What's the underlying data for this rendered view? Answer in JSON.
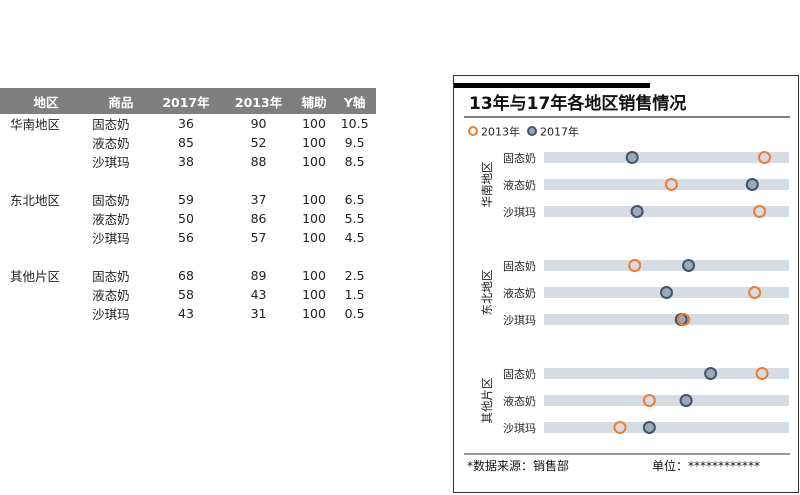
{
  "table": {
    "headers": [
      "地区",
      "商品",
      "2017年",
      "2013年",
      "辅助",
      "Y轴"
    ],
    "groups": [
      {
        "region": "华南地区",
        "rows": [
          {
            "product": "固态奶",
            "y2017": "36",
            "y2013": "90",
            "aux": "100",
            "y": "10.5"
          },
          {
            "product": "液态奶",
            "y2017": "85",
            "y2013": "52",
            "aux": "100",
            "y": "9.5"
          },
          {
            "product": "沙琪玛",
            "y2017": "38",
            "y2013": "88",
            "aux": "100",
            "y": "8.5"
          }
        ]
      },
      {
        "region": "东北地区",
        "rows": [
          {
            "product": "固态奶",
            "y2017": "59",
            "y2013": "37",
            "aux": "100",
            "y": "6.5"
          },
          {
            "product": "液态奶",
            "y2017": "50",
            "y2013": "86",
            "aux": "100",
            "y": "5.5"
          },
          {
            "product": "沙琪玛",
            "y2017": "56",
            "y2013": "57",
            "aux": "100",
            "y": "4.5"
          }
        ]
      },
      {
        "region": "其他片区",
        "rows": [
          {
            "product": "固态奶",
            "y2017": "68",
            "y2013": "89",
            "aux": "100",
            "y": "2.5"
          },
          {
            "product": "液态奶",
            "y2017": "58",
            "y2013": "43",
            "aux": "100",
            "y": "1.5"
          },
          {
            "product": "沙琪玛",
            "y2017": "43",
            "y2013": "31",
            "aux": "100",
            "y": "0.5"
          }
        ]
      }
    ]
  },
  "chart_data": {
    "type": "scatter",
    "title": "13年与17年各地区销售情况",
    "legend": [
      "2013年",
      "2017年"
    ],
    "legend_position": "top-left",
    "groups": [
      "华南地区",
      "东北地区",
      "其他片区"
    ],
    "categories": [
      "固态奶",
      "液态奶",
      "沙琪玛",
      "固态奶",
      "液态奶",
      "沙琪玛",
      "固态奶",
      "液态奶",
      "沙琪玛"
    ],
    "y": [
      10.5,
      9.5,
      8.5,
      6.5,
      5.5,
      4.5,
      2.5,
      1.5,
      0.5
    ],
    "series": [
      {
        "name": "2013年",
        "values": [
          90,
          52,
          88,
          37,
          86,
          57,
          89,
          43,
          31
        ]
      },
      {
        "name": "2017年",
        "values": [
          36,
          85,
          38,
          59,
          50,
          56,
          68,
          58,
          43
        ]
      }
    ],
    "background_bar_value": 100,
    "xlim": [
      0,
      100
    ],
    "ylim": [
      0,
      11
    ],
    "footer_left": "*数据来源：销售部",
    "footer_right": "单位：************"
  },
  "colors": {
    "series_2013": "#ed7d31",
    "series_2017": "#44546a",
    "track": "#d6dce4",
    "header_bg": "#7f7f7f"
  }
}
